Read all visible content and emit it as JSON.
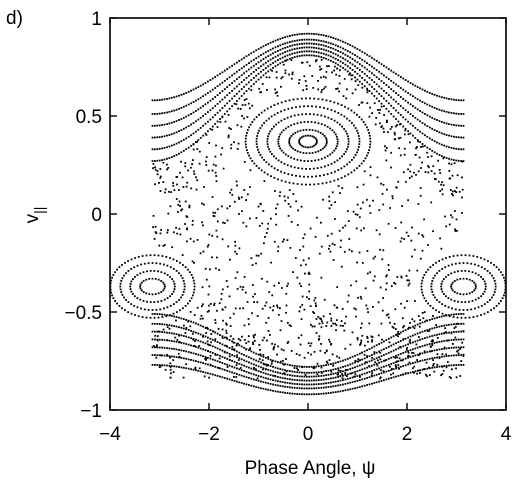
{
  "chart_data": {
    "type": "scatter",
    "panel_label": "d)",
    "title": "",
    "xlabel": "Phase Angle, ψ",
    "ylabel": "v",
    "ylabel_subscript": "||",
    "xlim": [
      -4,
      4
    ],
    "ylim": [
      -1,
      1
    ],
    "xticks": [
      -4,
      -2,
      0,
      2,
      4
    ],
    "xtick_labels": [
      "−4",
      "−2",
      "0",
      "2",
      "4"
    ],
    "yticks": [
      -1,
      -0.5,
      0,
      0.5,
      1
    ],
    "ytick_labels": [
      "−1",
      "−0.5",
      "0",
      "0.5",
      "1"
    ],
    "grid": false,
    "legend": "none",
    "marker_color": "#000000",
    "series": [
      {
        "role": "passing orbits, upper band (v at psi = 0)",
        "psi_range": [
          -3.14159,
          3.14159
        ],
        "v_at_psi0": [
          0.92,
          0.89,
          0.87,
          0.85,
          0.83,
          0.81
        ],
        "amplitude": [
          0.17,
          0.19,
          0.21,
          0.23,
          0.25,
          0.27
        ]
      },
      {
        "role": "passing orbits, lower band (v at psi = 0)",
        "psi_range": [
          -3.14159,
          3.14159
        ],
        "v_at_psi0": [
          -0.92,
          -0.89,
          -0.87,
          -0.85,
          -0.83,
          -0.81,
          -0.78
        ],
        "amplitude": [
          0.15,
          0.17,
          0.19,
          0.21,
          0.23,
          0.25,
          0.27
        ]
      },
      {
        "role": "trapped island centered at psi = 0",
        "center": [
          0,
          0.37
        ],
        "radii_psi": [
          0.18,
          0.38,
          0.6,
          0.82,
          1.04,
          1.26
        ],
        "radii_v": [
          0.03,
          0.06,
          0.1,
          0.14,
          0.18,
          0.22
        ]
      },
      {
        "role": "trapped island centered at psi = ±pi",
        "center": [
          3.14159,
          -0.37
        ],
        "radii_psi": [
          0.25,
          0.45,
          0.65,
          0.85
        ],
        "radii_v": [
          0.04,
          0.08,
          0.12,
          0.16
        ]
      },
      {
        "role": "chaotic sea",
        "v_range": [
          -0.84,
          0.79
        ],
        "psi_range": [
          -3.14159,
          3.14159
        ]
      }
    ]
  }
}
